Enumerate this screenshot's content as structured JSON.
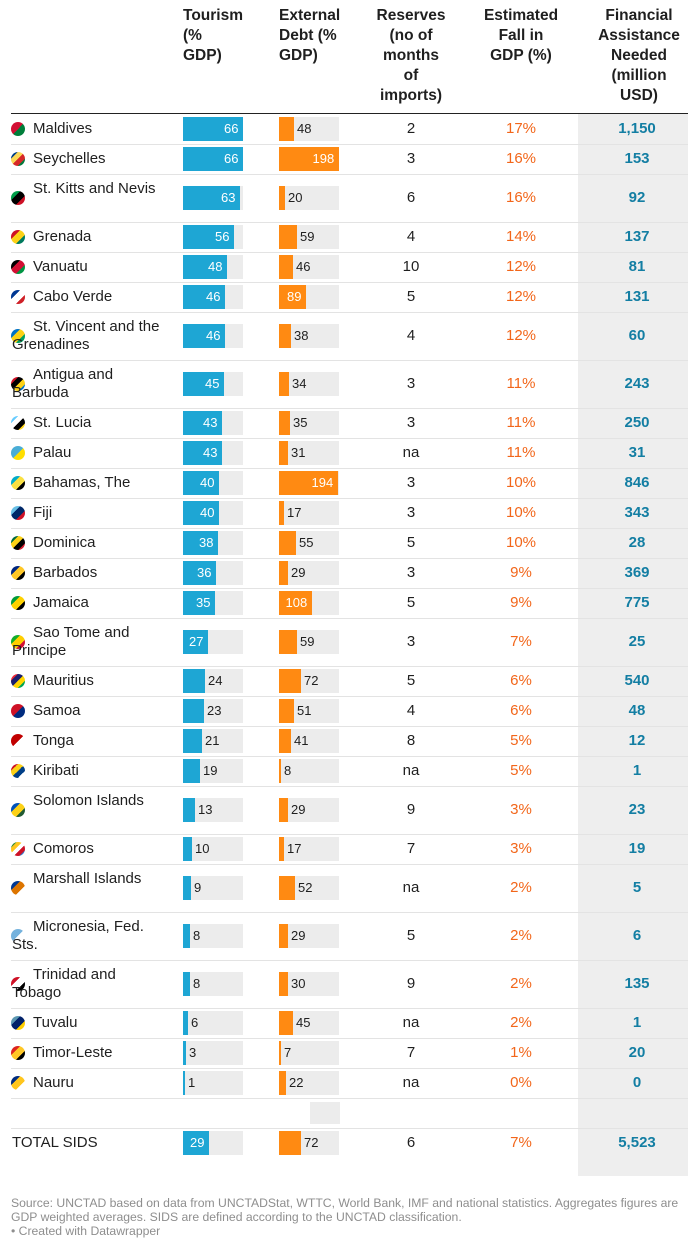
{
  "headers": {
    "tourism": "Tourism\n(%\nGDP)",
    "debt": "External\nDebt (%\nGDP)",
    "reserves": "Reserves\n(no of\nmonths\nof\nimports)",
    "fall": "Estimated\nFall in\nGDP (%)",
    "aid": "Financial\nAssistance\nNeeded\n(million\nUSD)"
  },
  "colors": {
    "tourism_bar": "#1ea6d4",
    "debt_bar": "#ff8a12",
    "fall_text": "#f2661a",
    "aid_text": "#137ea3",
    "aid_column_bg": "#eeeeee"
  },
  "chart_data": {
    "type": "table",
    "columns": [
      "Tourism (% GDP)",
      "External Debt (% GDP)",
      "Reserves (no of months of imports)",
      "Estimated Fall in GDP (%)",
      "Financial Assistance Needed (million USD)"
    ],
    "tourism_scale_max": 66,
    "debt_scale_max": 198,
    "rows": [
      {
        "country": "Maldives",
        "tourism": 66,
        "debt": 48,
        "reserves": "2",
        "fall": "17%",
        "aid": "1,150",
        "flag": [
          "#d21034",
          "#007e3a"
        ]
      },
      {
        "country": "Seychelles",
        "tourism": 66,
        "debt": 198,
        "reserves": "3",
        "fall": "16%",
        "aid": "153",
        "flag": [
          "#003f87",
          "#fcd856",
          "#d62828",
          "#007a3d"
        ]
      },
      {
        "country": "St. Kitts and Nevis",
        "tourism": 63,
        "debt": 20,
        "reserves": "6",
        "fall": "16%",
        "aid": "92",
        "flag": [
          "#009e49",
          "#000000",
          "#ce1126"
        ]
      },
      {
        "country": "Grenada",
        "tourism": 56,
        "debt": 59,
        "reserves": "4",
        "fall": "14%",
        "aid": "137",
        "flag": [
          "#ce1126",
          "#fcd116",
          "#007a5e"
        ]
      },
      {
        "country": "Vanuatu",
        "tourism": 48,
        "debt": 46,
        "reserves": "10",
        "fall": "12%",
        "aid": "81",
        "flag": [
          "#000000",
          "#d21034",
          "#009543"
        ]
      },
      {
        "country": "Cabo Verde",
        "tourism": 46,
        "debt": 89,
        "reserves": "5",
        "fall": "12%",
        "aid": "131",
        "flag": [
          "#003893",
          "#ffffff",
          "#cf2027"
        ]
      },
      {
        "country": "St. Vincent and the Grenadines",
        "tourism": 46,
        "debt": 38,
        "reserves": "4",
        "fall": "12%",
        "aid": "60",
        "flag": [
          "#0072c6",
          "#fcd116",
          "#009e60"
        ]
      },
      {
        "country": "Antigua and Barbuda",
        "tourism": 45,
        "debt": 34,
        "reserves": "3",
        "fall": "11%",
        "aid": "243",
        "flag": [
          "#ce1126",
          "#000000",
          "#fcd116",
          "#0072c6"
        ]
      },
      {
        "country": "St. Lucia",
        "tourism": 43,
        "debt": 35,
        "reserves": "3",
        "fall": "11%",
        "aid": "250",
        "flag": [
          "#66ccff",
          "#ffffff",
          "#000000",
          "#fcd116"
        ]
      },
      {
        "country": "Palau",
        "tourism": 43,
        "debt": 31,
        "reserves": "na",
        "fall": "11%",
        "aid": "31",
        "flag": [
          "#4aadd6",
          "#ffde00"
        ]
      },
      {
        "country": "Bahamas, The",
        "tourism": 40,
        "debt": 194,
        "reserves": "3",
        "fall": "10%",
        "aid": "846",
        "flag": [
          "#00abc9",
          "#fae042",
          "#000000"
        ]
      },
      {
        "country": "Fiji",
        "tourism": 40,
        "debt": 17,
        "reserves": "3",
        "fall": "10%",
        "aid": "343",
        "flag": [
          "#68bfe5",
          "#002868",
          "#ce1126"
        ]
      },
      {
        "country": "Dominica",
        "tourism": 38,
        "debt": 55,
        "reserves": "5",
        "fall": "10%",
        "aid": "28",
        "flag": [
          "#006b3f",
          "#fcd116",
          "#000000",
          "#d41c30"
        ]
      },
      {
        "country": "Barbados",
        "tourism": 36,
        "debt": 29,
        "reserves": "3",
        "fall": "9%",
        "aid": "369",
        "flag": [
          "#00267f",
          "#ffc726",
          "#000000"
        ]
      },
      {
        "country": "Jamaica",
        "tourism": 35,
        "debt": 108,
        "reserves": "5",
        "fall": "9%",
        "aid": "775",
        "flag": [
          "#009b3a",
          "#fed100",
          "#000000"
        ]
      },
      {
        "country": "Sao Tome and Principe",
        "tourism": 27,
        "debt": 59,
        "reserves": "3",
        "fall": "7%",
        "aid": "25",
        "flag": [
          "#12ad2b",
          "#ffce00",
          "#d21034"
        ]
      },
      {
        "country": "Mauritius",
        "tourism": 24,
        "debt": 72,
        "reserves": "5",
        "fall": "6%",
        "aid": "540",
        "flag": [
          "#ea2839",
          "#1a206d",
          "#ffd500",
          "#00a551"
        ]
      },
      {
        "country": "Samoa",
        "tourism": 23,
        "debt": 51,
        "reserves": "4",
        "fall": "6%",
        "aid": "48",
        "flag": [
          "#ce1126",
          "#002b7f"
        ]
      },
      {
        "country": "Tonga",
        "tourism": 21,
        "debt": 41,
        "reserves": "8",
        "fall": "5%",
        "aid": "12",
        "flag": [
          "#c10000",
          "#ffffff"
        ]
      },
      {
        "country": "Kiribati",
        "tourism": 19,
        "debt": 8,
        "reserves": "na",
        "fall": "5%",
        "aid": "1",
        "flag": [
          "#ce1126",
          "#fcd116",
          "#003f87",
          "#ffffff"
        ]
      },
      {
        "country": "Solomon Islands",
        "tourism": 13,
        "debt": 29,
        "reserves": "9",
        "fall": "3%",
        "aid": "23",
        "flag": [
          "#0051ba",
          "#fcd116",
          "#215b33"
        ]
      },
      {
        "country": "Comoros",
        "tourism": 10,
        "debt": 17,
        "reserves": "7",
        "fall": "3%",
        "aid": "19",
        "flag": [
          "#3d8e33",
          "#ffc61e",
          "#ffffff",
          "#ce1126",
          "#3a75c4"
        ]
      },
      {
        "country": "Marshall Islands",
        "tourism": 9,
        "debt": 52,
        "reserves": "na",
        "fall": "2%",
        "aid": "5",
        "flag": [
          "#003893",
          "#dd7500",
          "#ffffff"
        ]
      },
      {
        "country": "Micronesia, Fed. Sts.",
        "tourism": 8,
        "debt": 29,
        "reserves": "5",
        "fall": "2%",
        "aid": "6",
        "flag": [
          "#75b2dd",
          "#ffffff"
        ]
      },
      {
        "country": "Trinidad and Tobago",
        "tourism": 8,
        "debt": 30,
        "reserves": "9",
        "fall": "2%",
        "aid": "135",
        "flag": [
          "#ce1126",
          "#ffffff",
          "#000000"
        ]
      },
      {
        "country": "Tuvalu",
        "tourism": 6,
        "debt": 45,
        "reserves": "na",
        "fall": "2%",
        "aid": "1",
        "flag": [
          "#5b97b1",
          "#012169",
          "#ffce00"
        ]
      },
      {
        "country": "Timor-Leste",
        "tourism": 3,
        "debt": 7,
        "reserves": "7",
        "fall": "1%",
        "aid": "20",
        "flag": [
          "#dc241f",
          "#ffc726",
          "#000000"
        ]
      },
      {
        "country": "Nauru",
        "tourism": 1,
        "debt": 22,
        "reserves": "na",
        "fall": "0%",
        "aid": "0",
        "flag": [
          "#002b7f",
          "#ffc61e",
          "#ffffff"
        ]
      }
    ],
    "total": {
      "country": "TOTAL SIDS",
      "tourism": 29,
      "debt": 72,
      "reserves": "6",
      "fall": "7%",
      "aid": "5,523"
    }
  },
  "footer": {
    "source": "Source: UNCTAD based on data from UNCTADStat, WTTC, World Bank, IMF and national statistics. Aggregates figures are GDP weighted averages. SIDS are defined according to the UNCTAD classification.",
    "credit": "• Created with Datawrapper"
  }
}
